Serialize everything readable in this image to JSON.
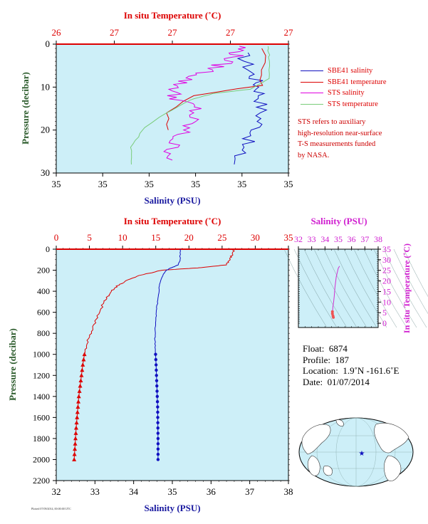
{
  "colors": {
    "plot_bg": "#cdeff8",
    "salinity": "#1010c0",
    "temperature": "#dd0000",
    "sts_salinity": "#e000e0",
    "sts_temperature": "#7acc7a",
    "axis_temp_label": "#dd0000",
    "axis_sal_label": "#1a1aa0",
    "pressure_label": "#2a5a2a",
    "ts_label": "#d020d0"
  },
  "top_panel": {
    "top_axis_title": "In situ Temperature (˚C)",
    "top_ticks": [
      "26",
      "27",
      "27",
      "27",
      "27"
    ],
    "bottom_axis_title": "Salinity (PSU)",
    "bottom_ticks": [
      "35",
      "35",
      "35",
      "35",
      "35",
      "35"
    ],
    "y_title": "Pressure (decibar)",
    "y_ticks": [
      "0",
      "10",
      "20",
      "30"
    ]
  },
  "legend": {
    "items": [
      {
        "label": "SBE41 salinity",
        "color": "#1010c0"
      },
      {
        "label": "SBE41 temperature",
        "color": "#dd0000"
      },
      {
        "label": "STS salinity",
        "color": "#e000e0"
      },
      {
        "label": "STS temperature",
        "color": "#7acc7a"
      }
    ],
    "note_lines": [
      "STS refers to auxiliary",
      "high-resolution near-surface",
      "T-S measurements funded",
      "by NASA."
    ]
  },
  "bottom_panel": {
    "top_axis_title": "In situ Temperature (˚C)",
    "top_ticks": [
      "0",
      "5",
      "10",
      "15",
      "20",
      "25",
      "30",
      "35"
    ],
    "bottom_axis_title": "Salinity (PSU)",
    "bottom_ticks": [
      "32",
      "33",
      "34",
      "35",
      "36",
      "37",
      "38"
    ],
    "y_title": "Pressure (decibar)",
    "y_ticks": [
      "0",
      "200",
      "400",
      "600",
      "800",
      "1000",
      "1200",
      "1400",
      "1600",
      "1800",
      "2000",
      "2200"
    ]
  },
  "ts_panel": {
    "top_axis_title": "Salinity (PSU)",
    "top_ticks": [
      "32",
      "33",
      "34",
      "35",
      "36",
      "37",
      "38"
    ],
    "right_axis_title": "In situ Temperature (˚C)",
    "right_ticks": [
      "0",
      "5",
      "10",
      "15",
      "20",
      "25",
      "30",
      "35"
    ]
  },
  "info": {
    "float_label": "Float:",
    "float_value": "6874",
    "profile_label": "Profile:",
    "profile_value": "187",
    "location_label": "Location:",
    "location_value": "1.9˚N  -161.6˚E",
    "date_label": "Date:",
    "date_value": "01/07/2014"
  },
  "credit": "Plotted 07/09/2014, 00:00:00 UTC",
  "chart_data": [
    {
      "type": "line",
      "title": "",
      "x_top_label": "In situ Temperature (˚C)",
      "x_bottom_label": "Salinity (PSU)",
      "ylabel": "Pressure (decibar)",
      "ylim": [
        30,
        0
      ],
      "series": [
        {
          "name": "SBE41 salinity",
          "x_unit": "salinity",
          "x": [
            35.12,
            35.13,
            35.14,
            35.145,
            35.145,
            35.14,
            35.12,
            35.11
          ],
          "y": [
            2,
            6,
            9,
            12,
            16,
            20,
            24,
            28
          ]
        },
        {
          "name": "SBE41 temperature",
          "x_unit": "temperature",
          "x": [
            27.52,
            27.52,
            27.5,
            27.0,
            26.82,
            26.82
          ],
          "y": [
            1,
            6,
            9.6,
            12,
            16,
            20
          ]
        },
        {
          "name": "STS salinity",
          "x_unit": "salinity",
          "x": [
            35.12,
            35.11,
            35.08,
            35.04,
            35.03,
            35.06,
            35.05,
            35.03,
            35.03
          ],
          "y": [
            0.5,
            3,
            6,
            9,
            12,
            15,
            19,
            23,
            27
          ]
        },
        {
          "name": "STS temperature",
          "x_unit": "temperature",
          "x": [
            27.55,
            27.56,
            27.56,
            27.42,
            27.15,
            26.98,
            26.75,
            26.63,
            26.55,
            26.55
          ],
          "y": [
            0.5,
            3,
            8,
            10.5,
            11.5,
            13,
            17,
            20,
            24,
            28
          ]
        }
      ]
    },
    {
      "type": "line",
      "title": "",
      "x_top_label": "In situ Temperature (˚C)",
      "x_bottom_label": "Salinity (PSU)",
      "ylabel": "Pressure (decibar)",
      "ylim": [
        2200,
        0
      ],
      "temperature_xlim": [
        0,
        35
      ],
      "salinity_xlim": [
        32,
        38
      ],
      "series": [
        {
          "name": "SBE41 temperature",
          "x_unit": "temperature",
          "x": [
            26.8,
            26.5,
            26.2,
            25.5,
            22.0,
            19.5,
            16.0,
            12.5,
            10.5,
            9.2,
            8.3,
            7.8,
            7.2,
            6.5,
            5.8,
            5.2,
            4.6,
            4.3,
            4.0,
            3.8,
            3.6,
            3.4,
            3.2,
            3.0,
            2.85,
            2.7
          ],
          "y": [
            0,
            50,
            100,
            150,
            175,
            185,
            200,
            250,
            300,
            350,
            400,
            450,
            500,
            600,
            700,
            800,
            900,
            980,
            1100,
            1200,
            1300,
            1400,
            1550,
            1700,
            1850,
            2000
          ]
        },
        {
          "name": "SBE41 salinity",
          "x_unit": "salinity",
          "x": [
            35.2,
            35.2,
            35.15,
            34.95,
            34.85,
            34.75,
            34.66,
            34.64,
            34.6,
            34.58,
            34.56,
            34.55,
            34.56,
            34.58,
            34.6,
            34.62,
            34.63,
            34.63
          ],
          "y": [
            0,
            100,
            150,
            180,
            200,
            250,
            350,
            450,
            550,
            650,
            750,
            850,
            950,
            1100,
            1300,
            1500,
            1800,
            2000
          ]
        }
      ]
    },
    {
      "type": "scatter",
      "title": "",
      "xlabel": "Salinity (PSU)",
      "ylabel": "In situ Temperature (˚C)",
      "xlim": [
        32,
        38
      ],
      "ylim": [
        -2,
        35
      ],
      "series": [
        {
          "name": "T-S",
          "x": [
            35.1,
            35.0,
            34.85,
            34.75,
            34.7,
            34.65,
            34.6,
            34.58,
            34.56,
            34.56,
            34.6,
            34.63
          ],
          "y": [
            27.0,
            26.0,
            22.0,
            17.0,
            13.0,
            10.0,
            8.0,
            6.5,
            5.5,
            4.5,
            3.5,
            2.8
          ]
        }
      ]
    }
  ]
}
